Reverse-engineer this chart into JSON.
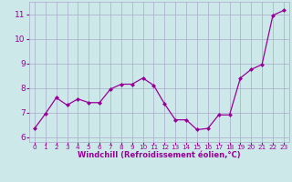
{
  "x": [
    0,
    1,
    2,
    3,
    4,
    5,
    6,
    7,
    8,
    9,
    10,
    11,
    12,
    13,
    14,
    15,
    16,
    17,
    18,
    19,
    20,
    21,
    22,
    23
  ],
  "y": [
    6.35,
    6.95,
    7.6,
    7.3,
    7.55,
    7.4,
    7.4,
    7.95,
    8.15,
    8.15,
    8.4,
    8.1,
    7.35,
    6.7,
    6.7,
    6.3,
    6.35,
    6.9,
    6.9,
    8.4,
    8.75,
    8.95,
    10.95,
    11.15
  ],
  "line_color": "#990099",
  "marker": "D",
  "marker_size": 2.0,
  "bg_color": "#cce8e8",
  "grid_color": "#aaaacc",
  "xlabel": "Windchill (Refroidissement éolien,°C)",
  "xlabel_color": "#990099",
  "xlabel_fontsize": 6.0,
  "tick_color": "#990099",
  "xtick_fontsize": 5.2,
  "ytick_fontsize": 6.5,
  "ylim": [
    5.8,
    11.5
  ],
  "yticks": [
    6,
    7,
    8,
    9,
    10,
    11
  ],
  "xlim": [
    -0.5,
    23.5
  ]
}
